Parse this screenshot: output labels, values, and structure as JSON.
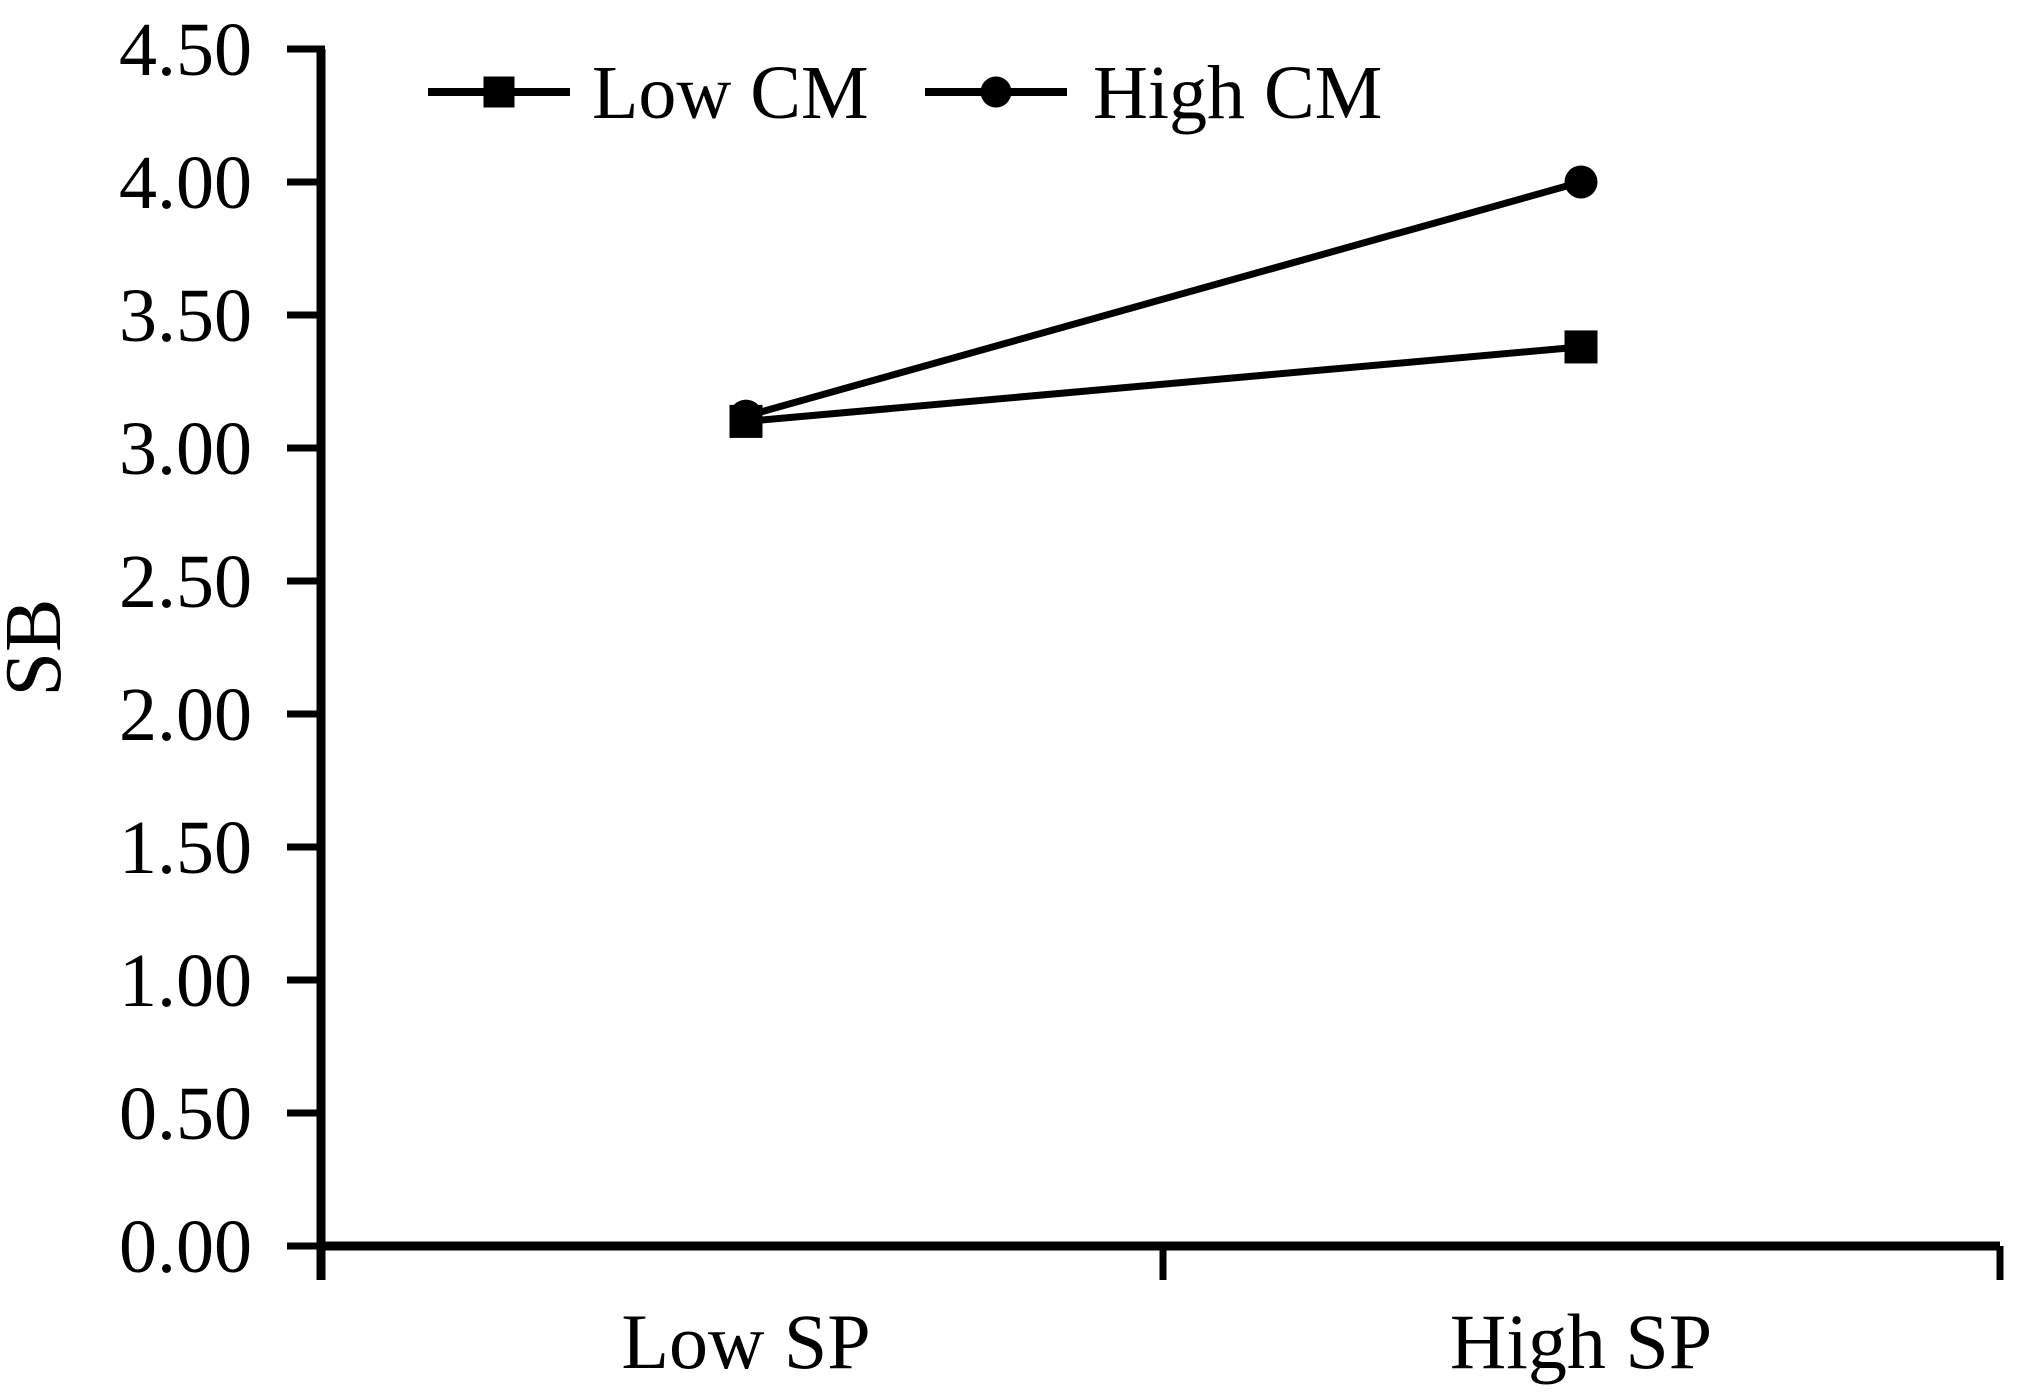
{
  "figure": {
    "background_color": "#ffffff",
    "foreground_color": "#000000"
  },
  "chart_data": {
    "type": "line",
    "title": "",
    "xlabel": "",
    "ylabel": "SB",
    "categories": [
      "Low SP",
      "High SP"
    ],
    "series": [
      {
        "name": "Low CM",
        "marker": "square",
        "values": [
          3.1,
          3.38
        ]
      },
      {
        "name": "High CM",
        "marker": "circle",
        "values": [
          3.12,
          4.0
        ]
      }
    ],
    "ylim": [
      0.0,
      4.5
    ],
    "ytick_step": 0.5,
    "ytick_labels": [
      "0.00",
      "0.50",
      "1.00",
      "1.50",
      "2.00",
      "2.50",
      "3.00",
      "3.50",
      "4.00",
      "4.50"
    ],
    "grid": false,
    "legend_position": "top-left-inside",
    "line_color": "#000000",
    "text_color": "#000000",
    "background_color": "#ffffff"
  }
}
